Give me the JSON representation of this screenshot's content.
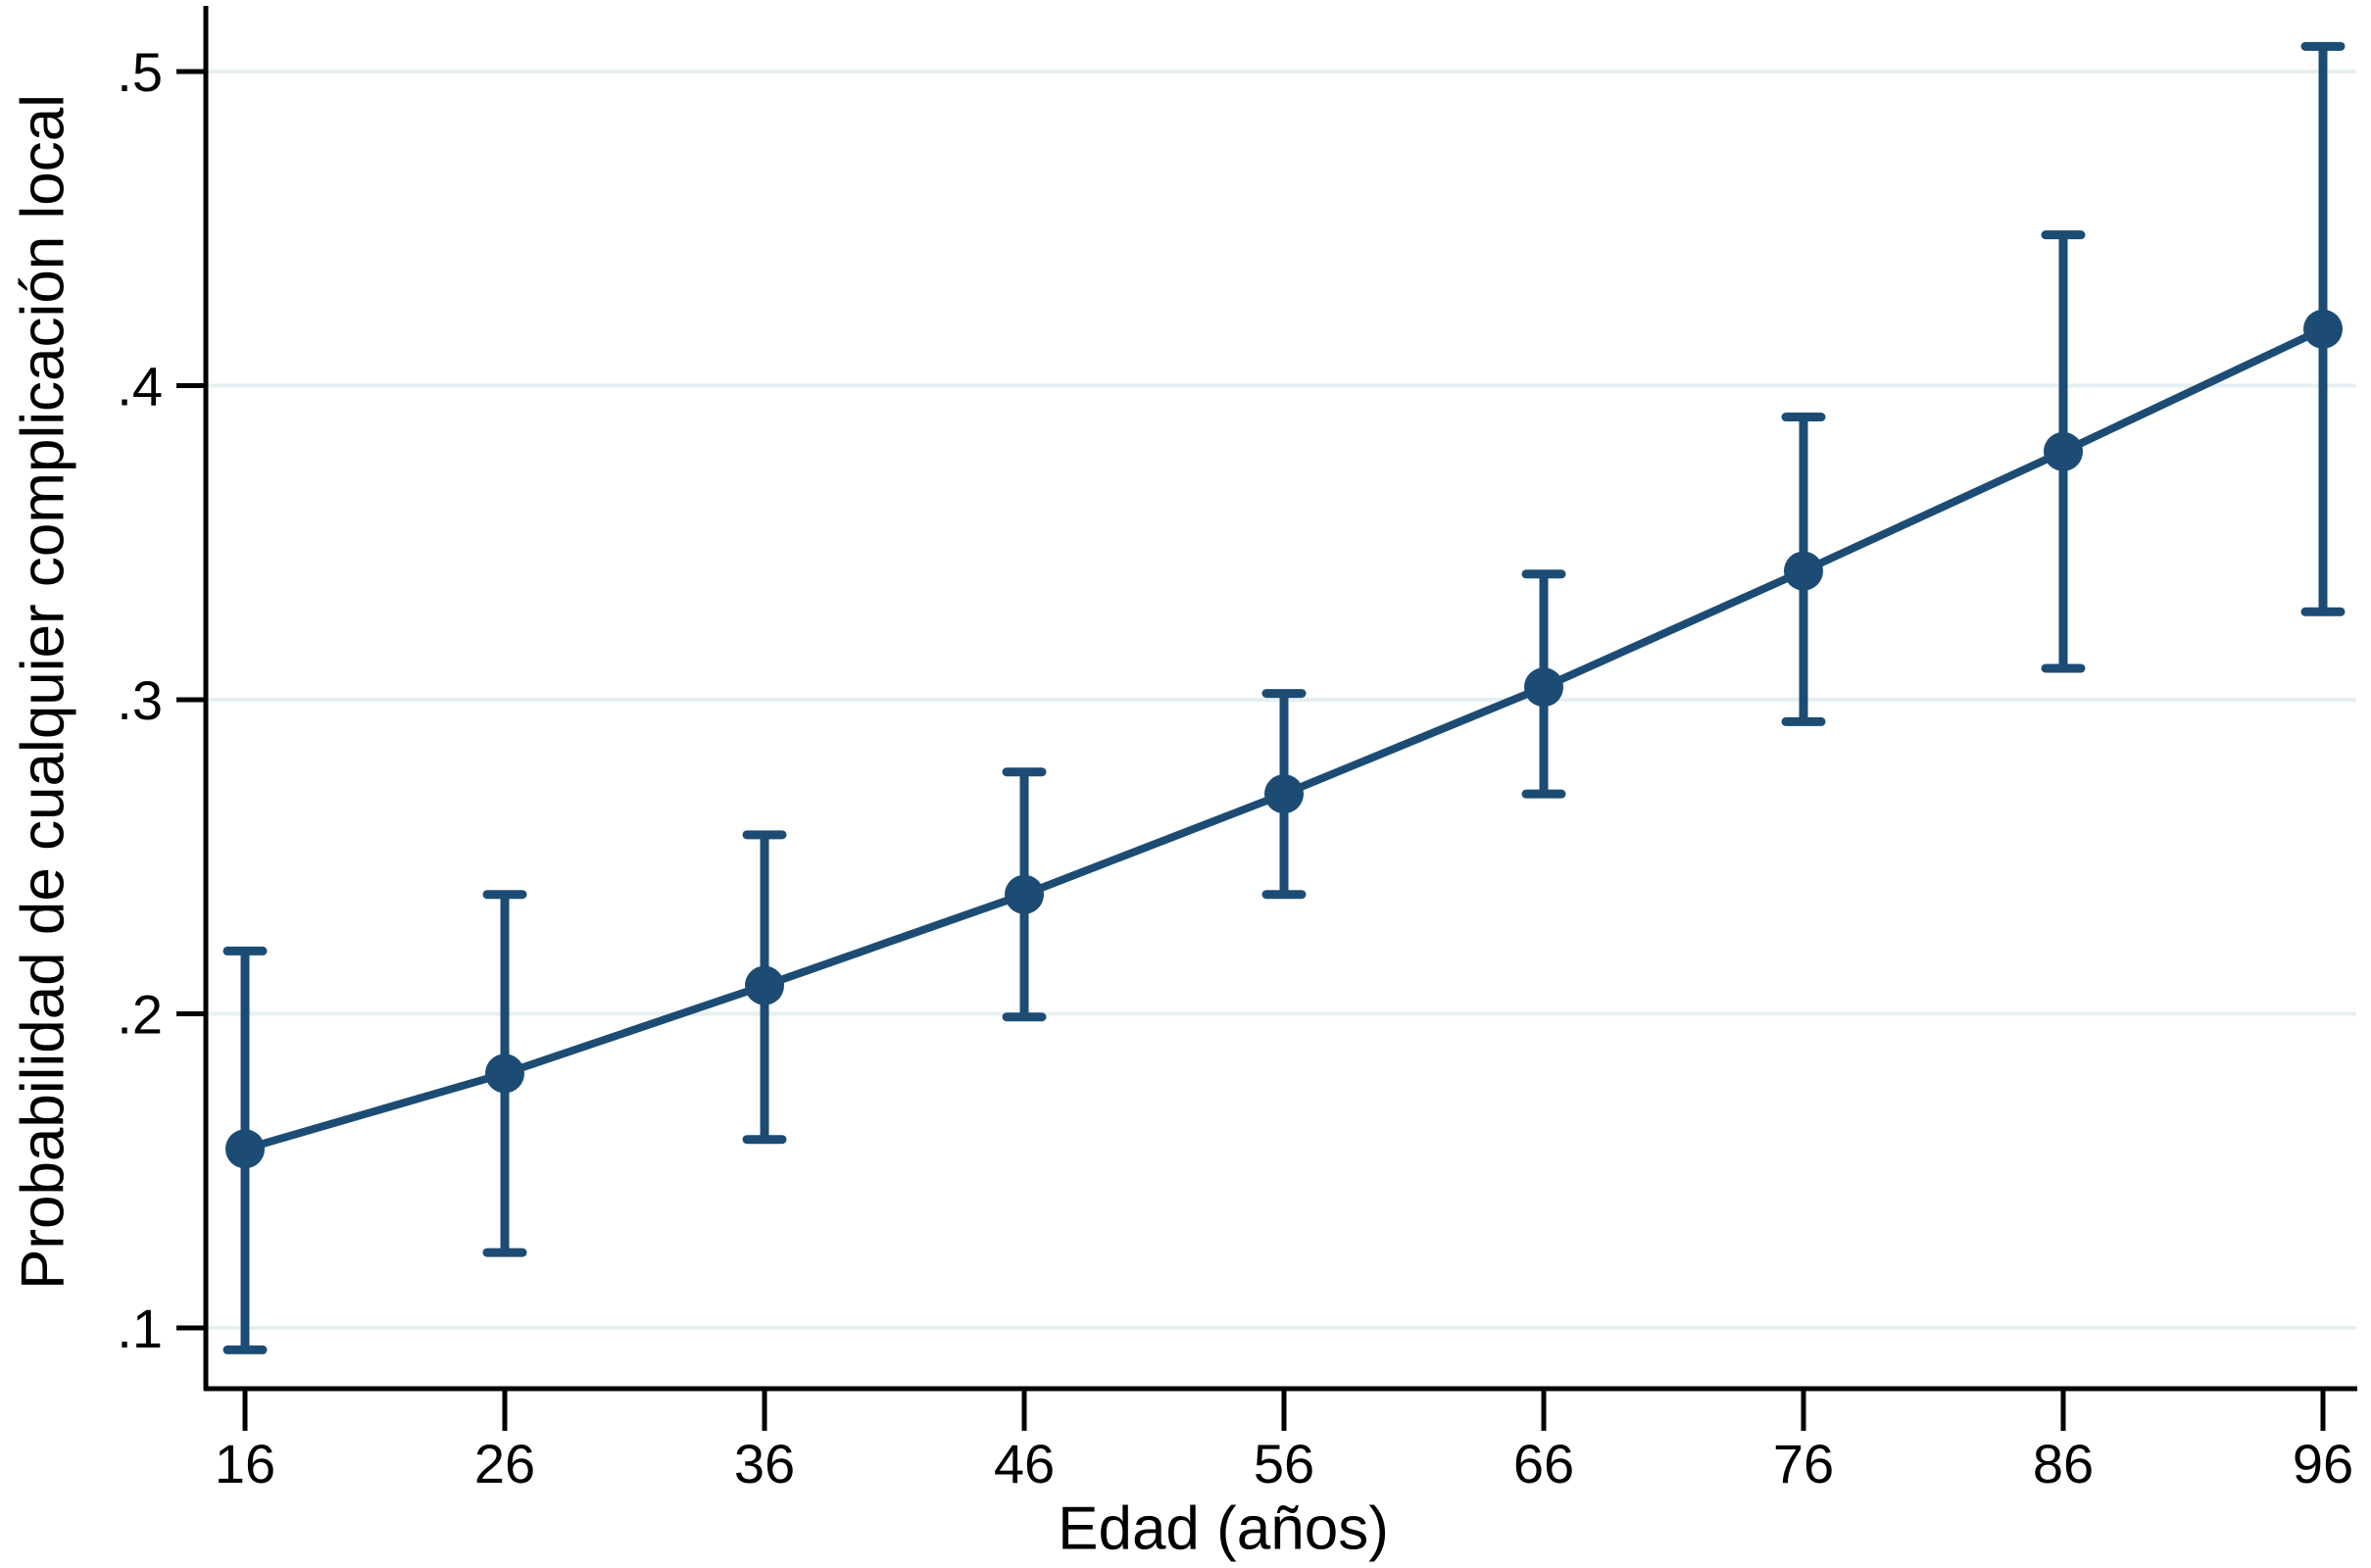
{
  "colors": {
    "series": "#1c4c74",
    "grid": "#e6eff1",
    "axis": "#000000",
    "background": "#ffffff"
  },
  "chart_data": {
    "type": "line",
    "title": "",
    "xlabel": "Edad (años)",
    "ylabel": "Probabilidad de cualquier complicación local",
    "x_tick_labels": [
      "16",
      "26",
      "36",
      "46",
      "56",
      "66",
      "76",
      "86",
      "96"
    ],
    "y_tick_labels": [
      ".1",
      ".2",
      ".3",
      ".4",
      ".5"
    ],
    "y_ticks": [
      0.1,
      0.2,
      0.3,
      0.4,
      0.5
    ],
    "x_ticks": [
      16,
      26,
      36,
      46,
      56,
      66,
      76,
      86,
      96
    ],
    "xlim": [
      14.5,
      97.3
    ],
    "ylim": [
      0.081,
      0.52
    ],
    "grid": "horizontal",
    "legend": "none",
    "marker": "circle",
    "error_bars": "95% CI with caps",
    "points": [
      {
        "x": 16,
        "y": 0.157,
        "ci_low": 0.093,
        "ci_high": 0.22
      },
      {
        "x": 26,
        "y": 0.181,
        "ci_low": 0.124,
        "ci_high": 0.238
      },
      {
        "x": 36,
        "y": 0.209,
        "ci_low": 0.16,
        "ci_high": 0.257
      },
      {
        "x": 46,
        "y": 0.238,
        "ci_low": 0.199,
        "ci_high": 0.277
      },
      {
        "x": 56,
        "y": 0.27,
        "ci_low": 0.238,
        "ci_high": 0.302
      },
      {
        "x": 66,
        "y": 0.304,
        "ci_low": 0.27,
        "ci_high": 0.34
      },
      {
        "x": 76,
        "y": 0.341,
        "ci_low": 0.293,
        "ci_high": 0.39
      },
      {
        "x": 86,
        "y": 0.379,
        "ci_low": 0.31,
        "ci_high": 0.448
      },
      {
        "x": 96,
        "y": 0.418,
        "ci_low": 0.328,
        "ci_high": 0.508
      }
    ]
  }
}
